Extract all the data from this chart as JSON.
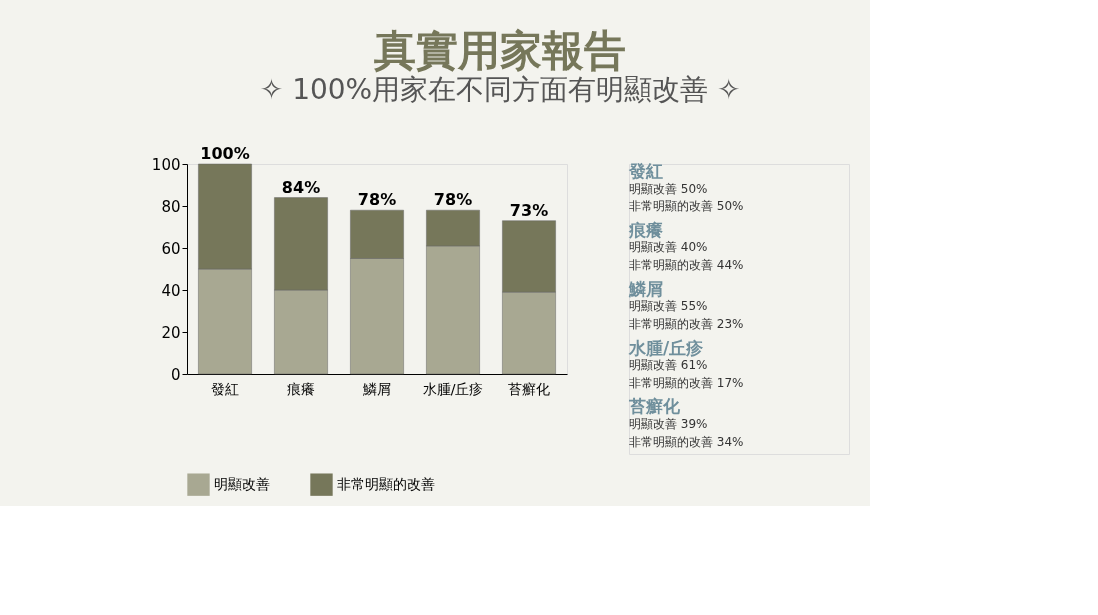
{
  "chart_data": {
    "type": "bar",
    "title": "真實用家報告",
    "subtitle": "✧ 100%用家在不同方面有明顯改善 ✧",
    "categories": [
      "發紅",
      "痕癢",
      "鱗屑",
      "水腫/丘疹",
      "苔癬化"
    ],
    "stacked": true,
    "series": [
      {
        "name": "明顯改善",
        "color": "#a8a892",
        "values": [
          50,
          40,
          55,
          61,
          39
        ]
      },
      {
        "name": "非常明顯的改善",
        "color": "#76775a",
        "values": [
          50,
          44,
          23,
          17,
          34
        ]
      }
    ],
    "totals": [
      "100%",
      "84%",
      "78%",
      "78%",
      "73%"
    ],
    "ylim": [
      0,
      100
    ],
    "yticks": [
      0,
      20,
      40,
      60,
      80,
      100
    ],
    "grid": false,
    "legend": "bottom",
    "annotations": [
      "發紅",
      "明顯改善 50%",
      "非常明顯的改善 50%",
      "痕癢",
      "明顯改善 40%",
      "非常明顯的改善 44%",
      "鱗屑",
      "明顯改善 55%",
      "非常明顯的改善 23%",
      "水腫/丘疹",
      "明顯改善 61%",
      "非常明顯的改善 17%",
      "苔癬化",
      "明顯改善 39%",
      "非常明顯的改善 34%"
    ]
  }
}
